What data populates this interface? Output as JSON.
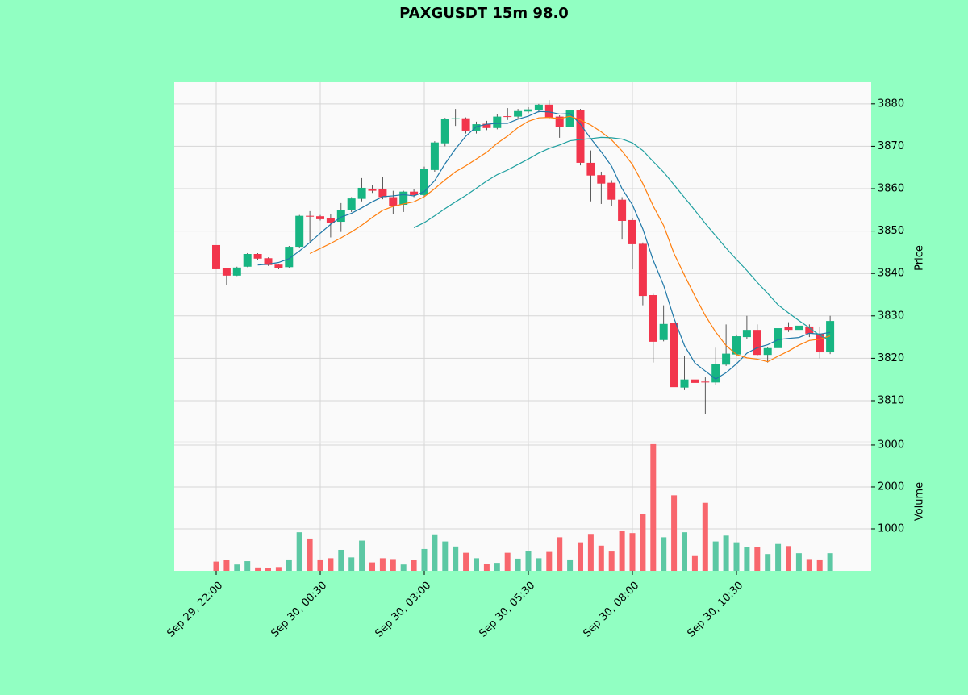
{
  "chart_data": {
    "type": "candlestick",
    "title": "PAXGUSDT 15m 98.0",
    "ylabel": "Price",
    "y2label": "Volume",
    "categories": [
      "Sep 29, 22:00",
      null,
      null,
      null,
      null,
      null,
      null,
      null,
      null,
      null,
      "Sep 30, 00:30",
      null,
      null,
      null,
      null,
      null,
      null,
      null,
      null,
      null,
      "Sep 30, 03:00",
      null,
      null,
      null,
      null,
      null,
      null,
      null,
      null,
      null,
      "Sep 30, 05:30",
      null,
      null,
      null,
      null,
      null,
      null,
      null,
      null,
      null,
      "Sep 30, 08:00",
      null,
      null,
      null,
      null,
      null,
      null,
      null,
      null,
      null,
      "Sep 30, 10:30",
      null,
      null,
      null,
      null,
      null,
      null,
      null,
      null,
      null
    ],
    "open": [
      3846.7,
      3841.2,
      3839.5,
      3841.6,
      3844.6,
      3843.6,
      3842.1,
      3841.5,
      3846.3,
      3853.6,
      3853.5,
      3853.0,
      3852.2,
      3854.9,
      3857.6,
      3860.0,
      3860.0,
      3858.0,
      3856.2,
      3859.3,
      3858.5,
      3864.4,
      3870.7,
      3876.4,
      3876.6,
      3873.7,
      3875.3,
      3874.3,
      3877.1,
      3877.0,
      3878.2,
      3878.6,
      3879.8,
      3877.0,
      3874.6,
      3878.6,
      3866.1,
      3863.2,
      3861.4,
      3857.4,
      3852.6,
      3847.0,
      3834.9,
      3824.3,
      3828.3,
      3813.1,
      3815.0,
      3814.5,
      3814.3,
      3818.5,
      3820.9,
      3825.0,
      3826.7,
      3820.8,
      3822.4,
      3827.3,
      3826.7,
      3827.5,
      3825.8,
      3821.4
    ],
    "high": [
      3846.7,
      3841.2,
      3841.6,
      3844.8,
      3844.8,
      3843.8,
      3842.2,
      3846.5,
      3853.8,
      3854.7,
      3853.8,
      3854.0,
      3856.6,
      3858.0,
      3862.5,
      3860.8,
      3862.8,
      3859.5,
      3859.5,
      3860.0,
      3865.2,
      3871.2,
      3876.7,
      3878.8,
      3876.8,
      3875.8,
      3876.0,
      3877.5,
      3879.0,
      3878.8,
      3879.2,
      3880.0,
      3880.9,
      3877.3,
      3879.2,
      3878.8,
      3869.0,
      3864.0,
      3862.0,
      3858.0,
      3853.0,
      3847.3,
      3835.2,
      3832.5,
      3834.4,
      3820.6,
      3820.0,
      3815.5,
      3822.5,
      3828.0,
      3825.6,
      3830.0,
      3828.0,
      3822.6,
      3831.0,
      3828.5,
      3828.0,
      3828.0,
      3827.5,
      3830.0
    ],
    "low": [
      3841.0,
      3837.3,
      3839.4,
      3841.5,
      3843.2,
      3841.8,
      3841.0,
      3841.3,
      3846.0,
      3847.5,
      3852.5,
      3848.5,
      3849.8,
      3854.5,
      3857.0,
      3859.0,
      3857.5,
      3854.0,
      3854.5,
      3858.0,
      3858.2,
      3864.0,
      3870.0,
      3874.8,
      3873.0,
      3873.0,
      3873.8,
      3874.0,
      3876.2,
      3876.5,
      3877.8,
      3878.0,
      3876.5,
      3872.0,
      3874.2,
      3865.5,
      3857.0,
      3856.4,
      3856.0,
      3848.0,
      3841.0,
      3832.5,
      3819.0,
      3824.0,
      3811.5,
      3812.5,
      3813.1,
      3806.8,
      3813.8,
      3818.2,
      3820.5,
      3824.5,
      3820.5,
      3819.0,
      3822.0,
      3826.2,
      3826.3,
      3825.0,
      3820.0,
      3821.0
    ],
    "close": [
      3841.0,
      3839.5,
      3841.4,
      3844.6,
      3843.5,
      3842.0,
      3841.3,
      3846.3,
      3853.6,
      3853.4,
      3852.8,
      3851.9,
      3855.0,
      3857.7,
      3860.2,
      3859.5,
      3858.0,
      3856.0,
      3859.3,
      3858.5,
      3864.6,
      3870.9,
      3876.4,
      3876.6,
      3873.7,
      3875.2,
      3874.3,
      3877.0,
      3877.0,
      3878.3,
      3878.7,
      3879.8,
      3876.8,
      3874.6,
      3878.6,
      3866.1,
      3863.1,
      3861.2,
      3857.4,
      3852.4,
      3846.9,
      3834.7,
      3823.9,
      3828.1,
      3813.2,
      3815.0,
      3814.2,
      3814.3,
      3818.6,
      3821.1,
      3825.2,
      3826.7,
      3820.8,
      3822.4,
      3827.1,
      3826.7,
      3827.7,
      3825.8,
      3821.4,
      3828.8
    ],
    "volume": [
      219,
      250,
      150,
      230,
      80,
      70,
      90,
      270,
      920,
      770,
      270,
      300,
      500,
      320,
      720,
      200,
      300,
      280,
      150,
      250,
      520,
      870,
      700,
      580,
      430,
      300,
      170,
      190,
      430,
      290,
      480,
      300,
      450,
      800,
      270,
      680,
      880,
      600,
      460,
      950,
      900,
      1350,
      3020,
      800,
      1800,
      920,
      370,
      1620,
      700,
      840,
      680,
      560,
      570,
      400,
      640,
      590,
      420,
      280,
      270,
      420
    ],
    "moving_averages": [
      {
        "color": "#1f78a8",
        "values": [
          null,
          null,
          null,
          null,
          3842.0,
          3842.2,
          3842.6,
          3843.5,
          3845.3,
          3847.3,
          3849.5,
          3851.6,
          3853.3,
          3854.2,
          3855.5,
          3856.9,
          3858.1,
          3858.3,
          3858.6,
          3858.3,
          3859.3,
          3861.9,
          3865.9,
          3869.4,
          3872.4,
          3874.6,
          3875.2,
          3875.4,
          3875.4,
          3876.4,
          3877.1,
          3878.2,
          3878.1,
          3877.6,
          3877.7,
          3875.2,
          3871.8,
          3868.7,
          3865.3,
          3860.0,
          3856.2,
          3850.5,
          3843.1,
          3837.2,
          3829.4,
          3823.0,
          3818.9,
          3817.0,
          3815.1,
          3816.6,
          3818.7,
          3821.2,
          3822.5,
          3823.2,
          3824.4,
          3824.7,
          3824.9,
          3825.9,
          3825.7,
          3826.1
        ]
      },
      {
        "color": "#ff7f0e",
        "values": [
          null,
          null,
          null,
          null,
          null,
          null,
          null,
          null,
          null,
          3844.7,
          3845.9,
          3847.1,
          3848.4,
          3849.8,
          3851.4,
          3853.2,
          3854.9,
          3855.8,
          3856.4,
          3856.9,
          3858.1,
          3860.0,
          3862.1,
          3864.0,
          3865.4,
          3867.0,
          3868.6,
          3870.7,
          3872.4,
          3874.4,
          3875.9,
          3876.7,
          3876.8,
          3876.5,
          3877.1,
          3876.2,
          3875.0,
          3873.4,
          3871.5,
          3868.9,
          3865.7,
          3861.2,
          3855.9,
          3851.3,
          3844.7,
          3839.6,
          3834.7,
          3830.1,
          3826.2,
          3823.0,
          3820.9,
          3820.1,
          3819.8,
          3819.2,
          3820.5,
          3821.7,
          3823.1,
          3824.2,
          3824.5,
          3825.3
        ]
      },
      {
        "color": "#20a0a0",
        "values": [
          null,
          null,
          null,
          null,
          null,
          null,
          null,
          null,
          null,
          null,
          null,
          null,
          null,
          null,
          null,
          null,
          null,
          null,
          null,
          3850.8,
          3852.0,
          3853.6,
          3855.3,
          3856.9,
          3858.4,
          3860.1,
          3861.8,
          3863.3,
          3864.4,
          3865.7,
          3867.0,
          3868.4,
          3869.5,
          3870.3,
          3871.3,
          3871.6,
          3871.8,
          3872.1,
          3872.0,
          3871.7,
          3870.8,
          3869.0,
          3866.4,
          3863.9,
          3860.9,
          3857.9,
          3854.9,
          3851.8,
          3848.9,
          3846.0,
          3843.3,
          3840.7,
          3837.9,
          3835.3,
          3832.6,
          3830.7,
          3828.9,
          3827.2,
          3825.4,
          3824.2
        ]
      }
    ],
    "up_color": "#17b582",
    "down_color": "#f2354c",
    "volume_up_color": "#5cc8a4",
    "volume_down_color": "#f8666d",
    "ylim": [
      3800.3,
      3885.1
    ],
    "yticks": [
      3810,
      3820,
      3830,
      3840,
      3850,
      3860,
      3870,
      3880
    ],
    "y2lim": [
      0,
      3076
    ],
    "y2ticks": [
      1000,
      2000,
      3000
    ],
    "grid": true
  }
}
